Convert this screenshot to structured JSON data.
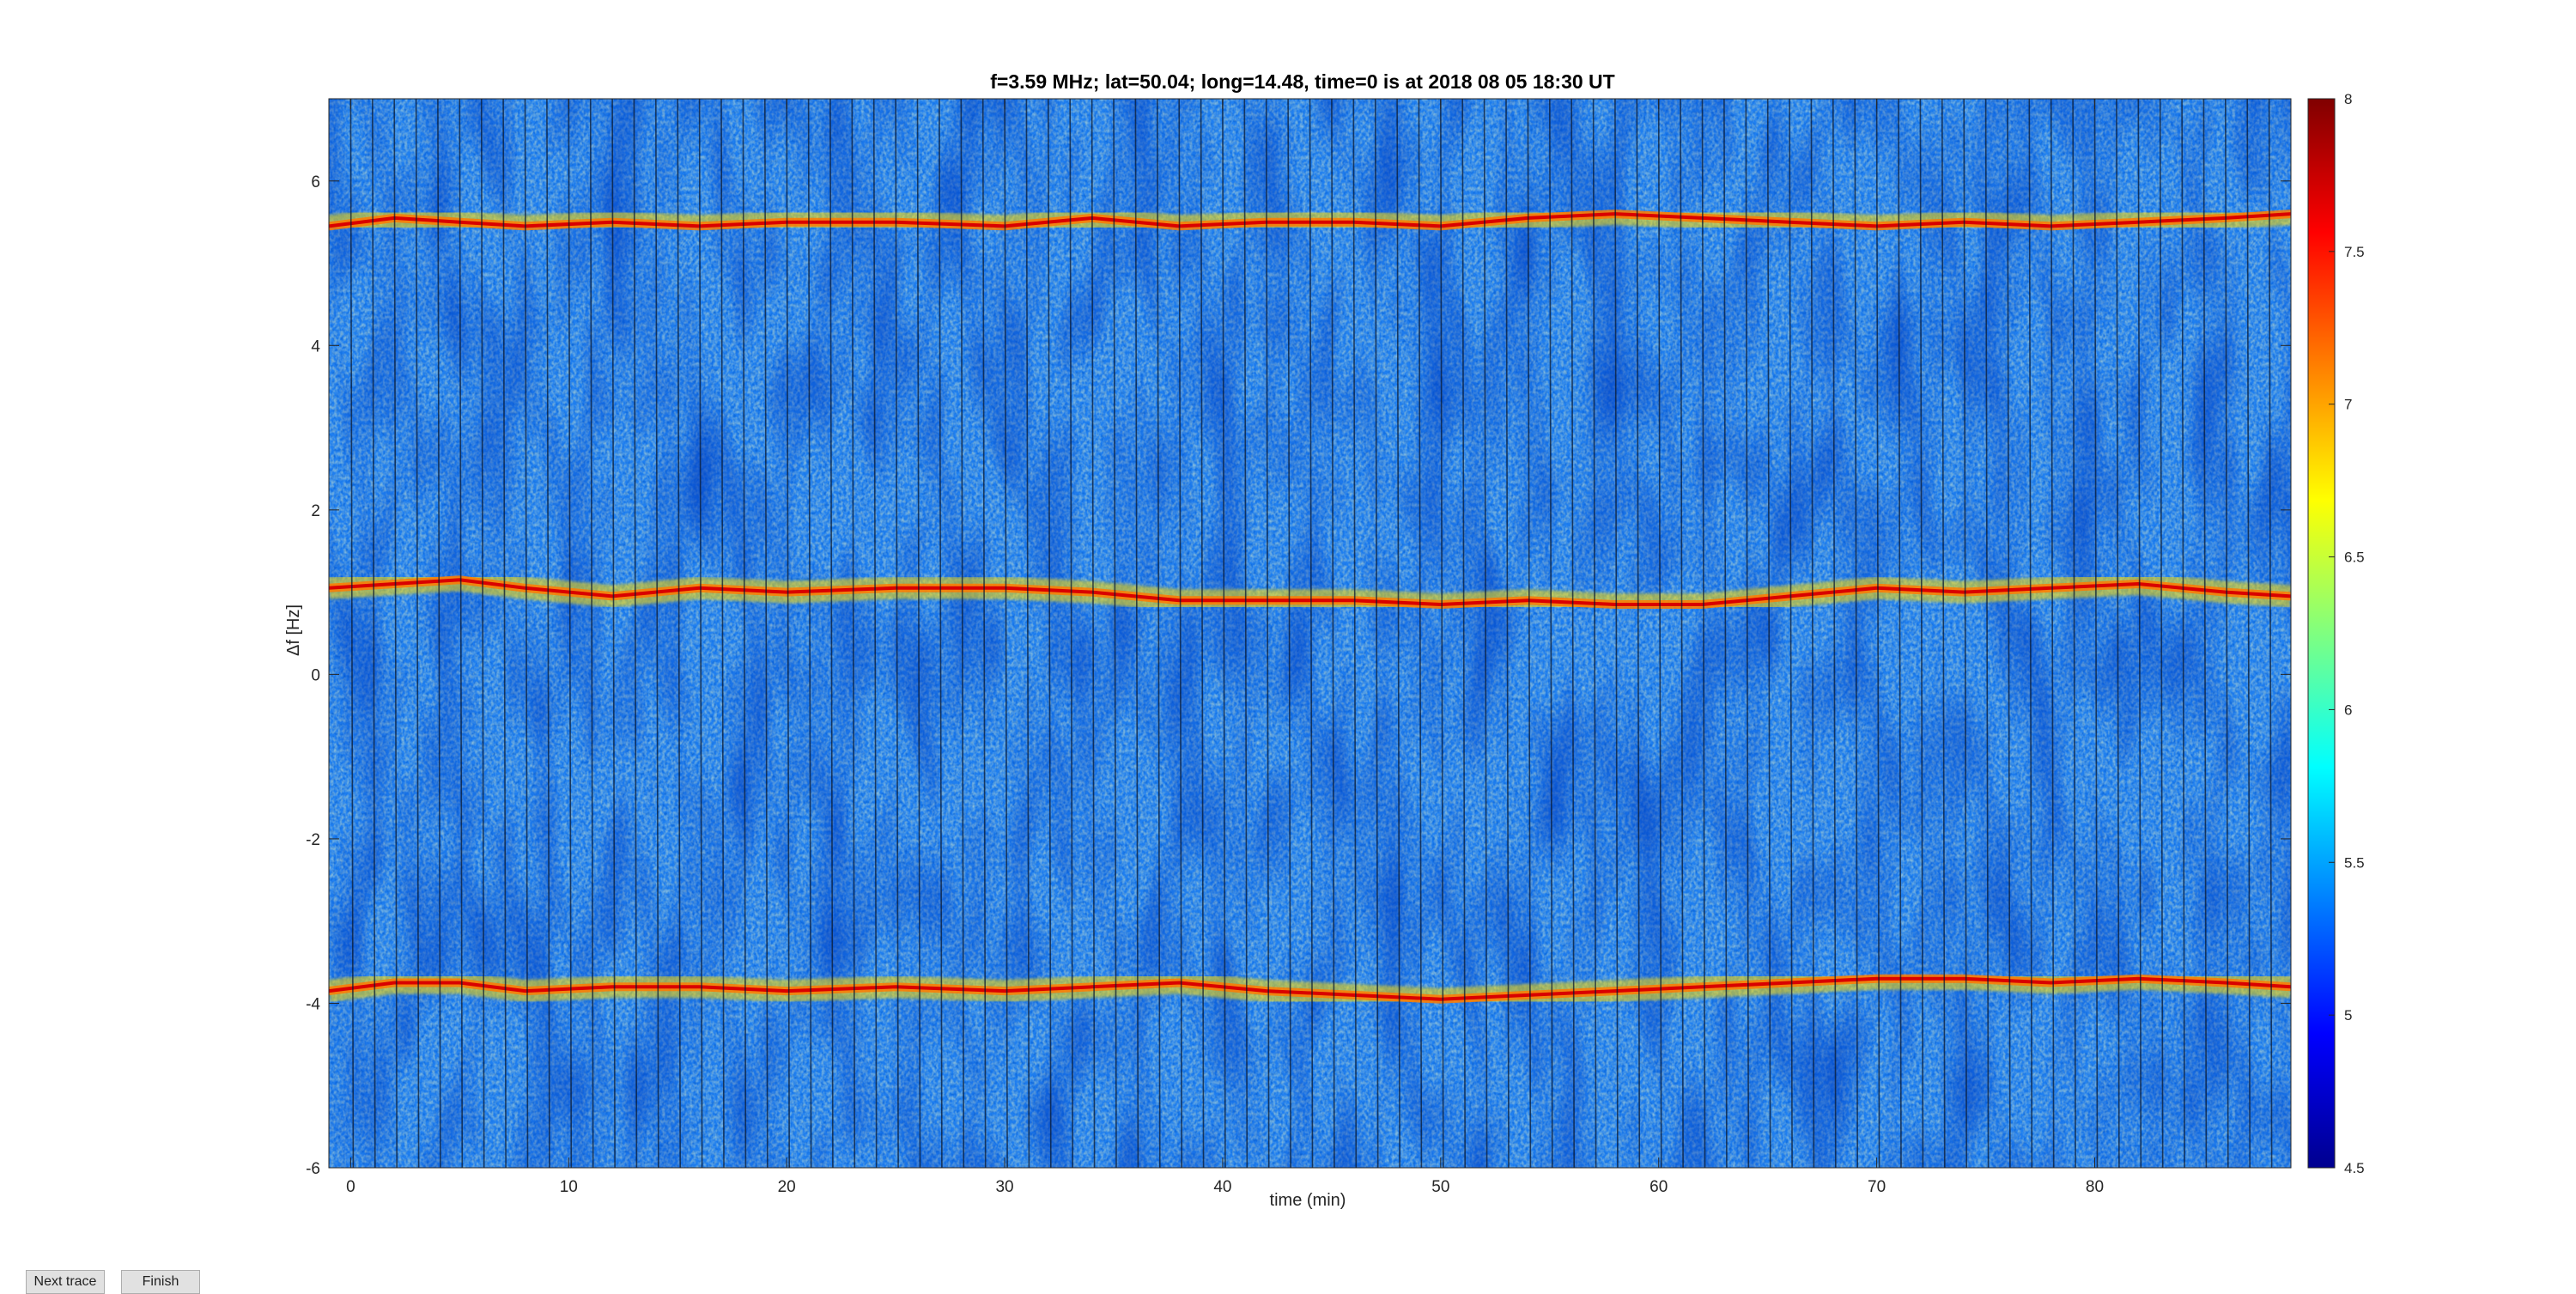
{
  "figure": {
    "next_label": "Next trace",
    "finish_label": "Finish"
  },
  "chart_data": {
    "type": "heatmap",
    "title": "f=3.59 MHz;  lat=50.04; long=14.48, time=0 is at 2018 08 05 18:30 UT",
    "xlabel": "time (min)",
    "ylabel": "Δf [Hz]",
    "xlim": [
      -1,
      89
    ],
    "ylim": [
      -6,
      7
    ],
    "xticks": [
      0,
      10,
      20,
      30,
      40,
      50,
      60,
      70,
      80
    ],
    "yticks": [
      -6,
      -4,
      -2,
      0,
      2,
      4,
      6
    ],
    "colorbar": {
      "colormap": "jet",
      "clim": [
        4.5,
        8
      ],
      "ticks": [
        4.5,
        5,
        5.5,
        6,
        6.5,
        7,
        7.5,
        8
      ]
    },
    "segment_width_min": 1,
    "traces": [
      {
        "x": [
          -1,
          2,
          5,
          8,
          12,
          16,
          20,
          25,
          30,
          34,
          38,
          42,
          46,
          50,
          54,
          58,
          62,
          66,
          70,
          74,
          78,
          82,
          86,
          89
        ],
        "y": [
          5.45,
          5.55,
          5.5,
          5.45,
          5.5,
          5.45,
          5.5,
          5.5,
          5.45,
          5.55,
          5.45,
          5.5,
          5.5,
          5.45,
          5.55,
          5.6,
          5.55,
          5.5,
          5.45,
          5.5,
          5.45,
          5.5,
          5.55,
          5.6
        ]
      },
      {
        "x": [
          -1,
          2,
          5,
          8,
          12,
          16,
          20,
          25,
          30,
          34,
          38,
          42,
          46,
          50,
          54,
          58,
          62,
          66,
          70,
          74,
          78,
          82,
          86,
          89
        ],
        "y": [
          1.05,
          1.1,
          1.15,
          1.05,
          0.95,
          1.05,
          1.0,
          1.05,
          1.05,
          1.0,
          0.9,
          0.9,
          0.9,
          0.85,
          0.9,
          0.85,
          0.85,
          0.95,
          1.05,
          1.0,
          1.05,
          1.1,
          1.0,
          0.95
        ]
      },
      {
        "x": [
          -1,
          2,
          5,
          8,
          12,
          16,
          20,
          25,
          30,
          34,
          38,
          42,
          46,
          50,
          54,
          58,
          62,
          66,
          70,
          74,
          78,
          82,
          86,
          89
        ],
        "y": [
          -3.85,
          -3.75,
          -3.75,
          -3.85,
          -3.8,
          -3.8,
          -3.85,
          -3.8,
          -3.85,
          -3.8,
          -3.75,
          -3.85,
          -3.9,
          -3.95,
          -3.9,
          -3.85,
          -3.8,
          -3.75,
          -3.7,
          -3.7,
          -3.75,
          -3.7,
          -3.75,
          -3.8
        ]
      }
    ]
  }
}
